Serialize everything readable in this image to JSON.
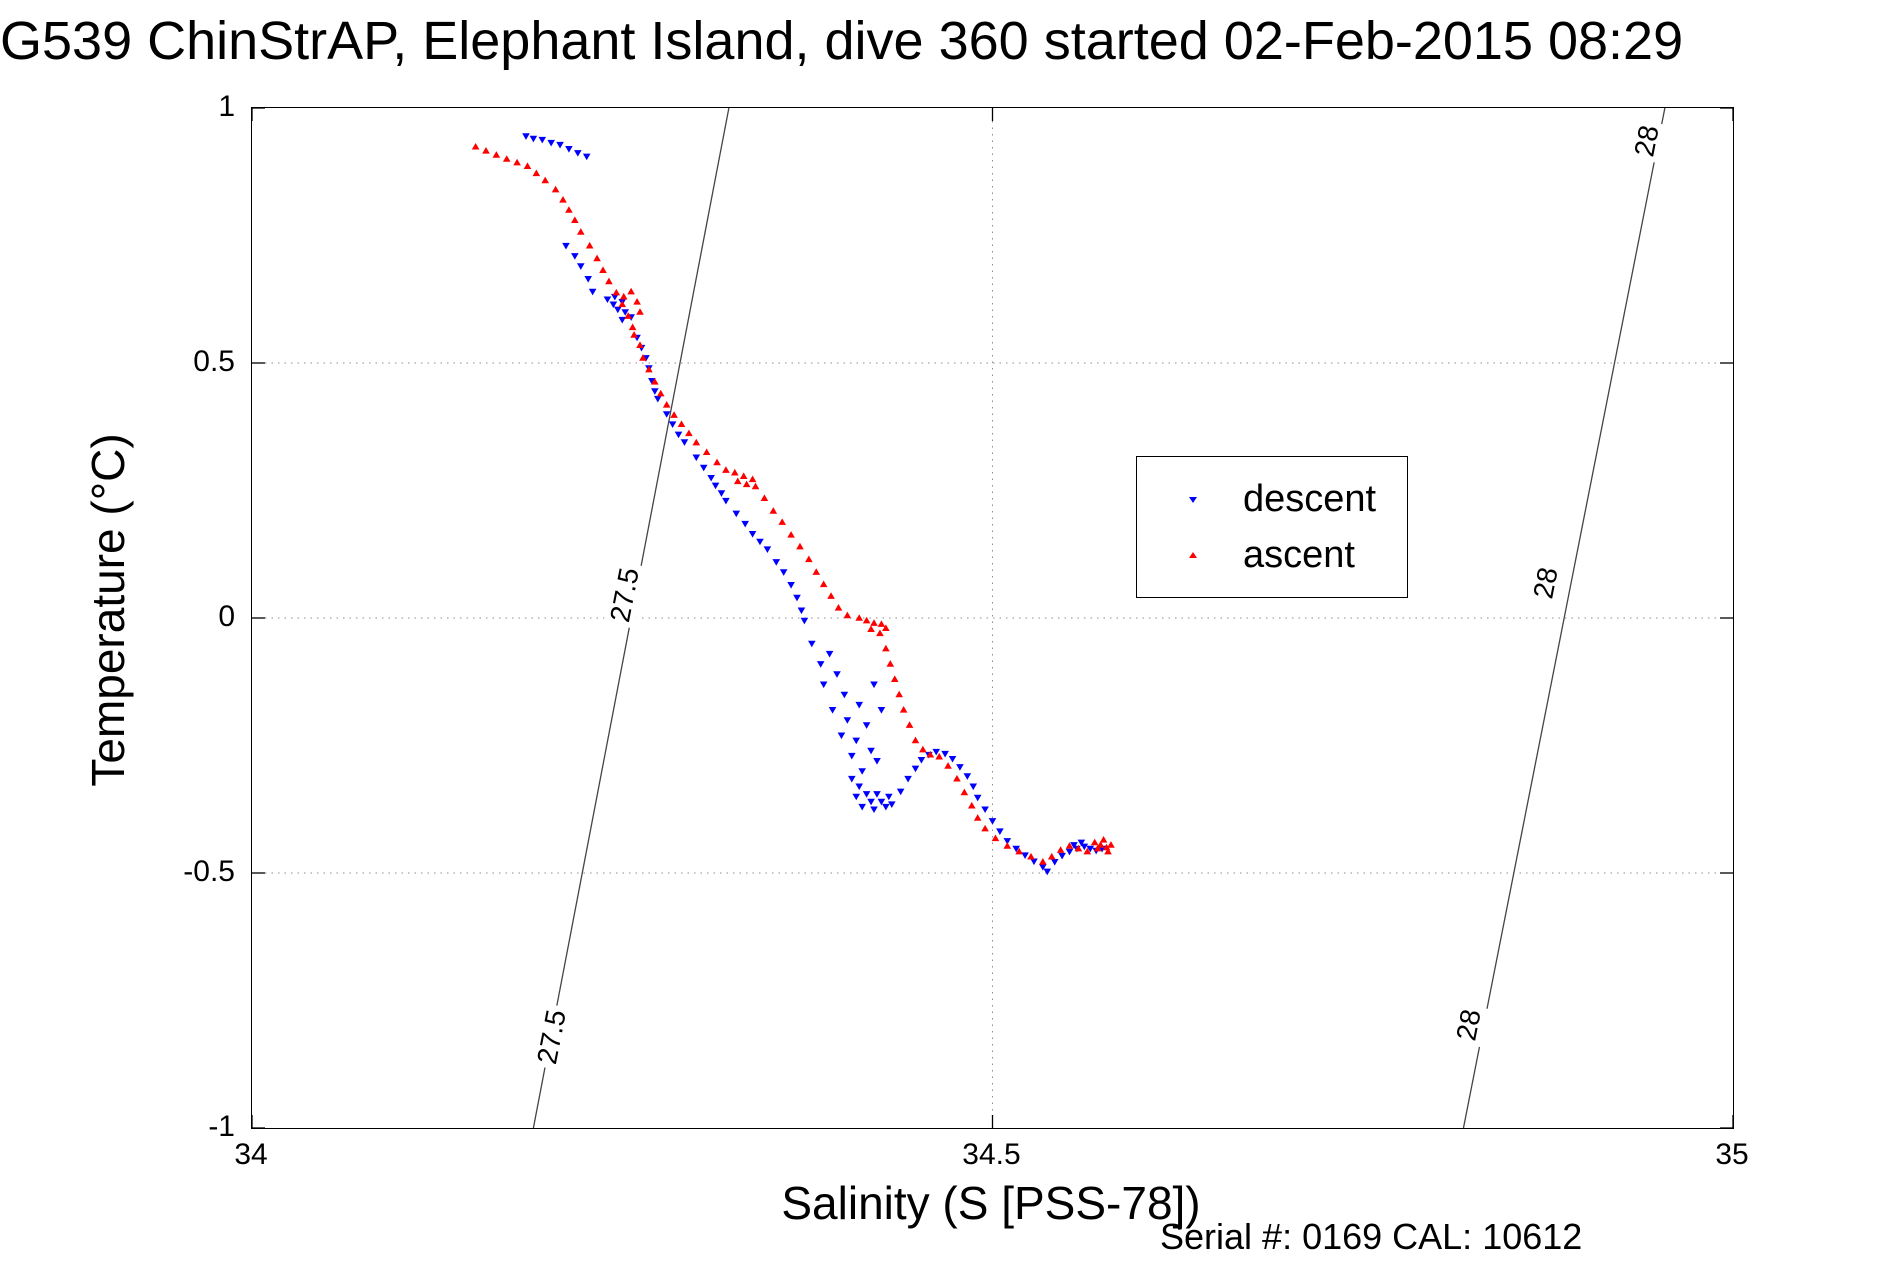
{
  "chart_data": {
    "type": "scatter",
    "title": "G539 ChinStrAP, Elephant Island, dive 360 started 02-Feb-2015 08:29",
    "xlabel": "Salinity (S [PSS-78])",
    "ylabel": "Temperature (°C)",
    "footer": "Serial #: 0169 CAL: 10612",
    "xlim": [
      34,
      35
    ],
    "ylim": [
      -1,
      1
    ],
    "xticks": [
      34,
      34.5,
      35
    ],
    "xtick_labels": [
      "34",
      "34.5",
      "35"
    ],
    "yticks": [
      -1,
      -0.5,
      0,
      0.5,
      1
    ],
    "ytick_labels": [
      "-1",
      "-0.5",
      "0",
      "0.5",
      "1"
    ],
    "grid": true,
    "legend_position": "upper-right-inside",
    "colors": {
      "descent": "#0000ff",
      "ascent": "#ff0000",
      "contour": "#444444",
      "grid": "#8c8c8c"
    },
    "contours": [
      {
        "label": "27.5",
        "line": [
          [
            34.19,
            -1
          ],
          [
            34.322,
            1
          ]
        ],
        "label_points": [
          [
            34.252,
            0.045
          ],
          [
            34.2025,
            -0.822
          ]
        ]
      },
      {
        "label": "28",
        "line": [
          [
            34.818,
            -1
          ],
          [
            34.954,
            1
          ]
        ],
        "label_points": [
          [
            34.942,
            0.936
          ],
          [
            34.8735,
            0.069
          ],
          [
            34.822,
            -0.798
          ]
        ]
      }
    ],
    "series": [
      {
        "name": "descent",
        "color": "#0000ff",
        "marker": "triangle-down",
        "points": [
          [
            34.185,
            0.945
          ],
          [
            34.19,
            0.94
          ],
          [
            34.196,
            0.938
          ],
          [
            34.202,
            0.932
          ],
          [
            34.208,
            0.928
          ],
          [
            34.214,
            0.92
          ],
          [
            34.22,
            0.912
          ],
          [
            34.226,
            0.905
          ],
          [
            34.212,
            0.73
          ],
          [
            34.218,
            0.71
          ],
          [
            34.222,
            0.69
          ],
          [
            34.227,
            0.665
          ],
          [
            34.23,
            0.64
          ],
          [
            34.24,
            0.625
          ],
          [
            34.245,
            0.63
          ],
          [
            34.25,
            0.62
          ],
          [
            34.247,
            0.605
          ],
          [
            34.252,
            0.6
          ],
          [
            34.256,
            0.59
          ],
          [
            34.25,
            0.585
          ],
          [
            34.244,
            0.615
          ],
          [
            34.26,
            0.55
          ],
          [
            34.263,
            0.53
          ],
          [
            34.266,
            0.51
          ],
          [
            34.268,
            0.49
          ],
          [
            34.27,
            0.465
          ],
          [
            34.272,
            0.445
          ],
          [
            34.274,
            0.43
          ],
          [
            34.28,
            0.4
          ],
          [
            34.284,
            0.38
          ],
          [
            34.288,
            0.36
          ],
          [
            34.292,
            0.345
          ],
          [
            34.3,
            0.315
          ],
          [
            34.305,
            0.295
          ],
          [
            34.31,
            0.275
          ],
          [
            34.313,
            0.26
          ],
          [
            34.317,
            0.245
          ],
          [
            34.32,
            0.23
          ],
          [
            34.327,
            0.205
          ],
          [
            34.333,
            0.185
          ],
          [
            34.338,
            0.165
          ],
          [
            34.343,
            0.15
          ],
          [
            34.348,
            0.135
          ],
          [
            34.354,
            0.11
          ],
          [
            34.359,
            0.09
          ],
          [
            34.364,
            0.065
          ],
          [
            34.368,
            0.04
          ],
          [
            34.371,
            0.015
          ],
          [
            34.373,
            -0.005
          ],
          [
            34.378,
            -0.05
          ],
          [
            34.384,
            -0.09
          ],
          [
            34.39,
            -0.07
          ],
          [
            34.386,
            -0.13
          ],
          [
            34.395,
            -0.11
          ],
          [
            34.4,
            -0.15
          ],
          [
            34.392,
            -0.18
          ],
          [
            34.402,
            -0.2
          ],
          [
            34.41,
            -0.17
          ],
          [
            34.398,
            -0.23
          ],
          [
            34.408,
            -0.24
          ],
          [
            34.415,
            -0.21
          ],
          [
            34.405,
            -0.27
          ],
          [
            34.418,
            -0.26
          ],
          [
            34.412,
            -0.3
          ],
          [
            34.42,
            -0.13
          ],
          [
            34.425,
            -0.18
          ],
          [
            34.422,
            -0.28
          ],
          [
            34.405,
            -0.315
          ],
          [
            34.41,
            -0.33
          ],
          [
            34.415,
            -0.345
          ],
          [
            34.408,
            -0.35
          ],
          [
            34.418,
            -0.36
          ],
          [
            34.412,
            -0.37
          ],
          [
            34.42,
            -0.375
          ],
          [
            34.425,
            -0.36
          ],
          [
            34.428,
            -0.37
          ],
          [
            34.432,
            -0.365
          ],
          [
            34.422,
            -0.345
          ],
          [
            34.43,
            -0.35
          ],
          [
            34.438,
            -0.34
          ],
          [
            34.443,
            -0.315
          ],
          [
            34.448,
            -0.295
          ],
          [
            34.452,
            -0.278
          ],
          [
            34.457,
            -0.268
          ],
          [
            34.462,
            -0.262
          ],
          [
            34.468,
            -0.266
          ],
          [
            34.473,
            -0.276
          ],
          [
            34.478,
            -0.292
          ],
          [
            34.483,
            -0.31
          ],
          [
            34.487,
            -0.33
          ],
          [
            34.49,
            -0.352
          ],
          [
            34.495,
            -0.375
          ],
          [
            34.5,
            -0.398
          ],
          [
            34.505,
            -0.418
          ],
          [
            34.51,
            -0.437
          ],
          [
            34.516,
            -0.452
          ],
          [
            34.522,
            -0.465
          ],
          [
            34.528,
            -0.477
          ],
          [
            34.534,
            -0.488
          ],
          [
            34.537,
            -0.497
          ],
          [
            34.542,
            -0.478
          ],
          [
            34.547,
            -0.466
          ],
          [
            34.552,
            -0.458
          ],
          [
            34.557,
            -0.452
          ],
          [
            34.562,
            -0.448
          ],
          [
            34.566,
            -0.452
          ],
          [
            34.57,
            -0.456
          ],
          [
            34.574,
            -0.452
          ],
          [
            34.56,
            -0.44
          ],
          [
            34.555,
            -0.445
          ]
        ]
      },
      {
        "name": "ascent",
        "color": "#ff0000",
        "marker": "triangle-up",
        "points": [
          [
            34.151,
            0.924
          ],
          [
            34.158,
            0.916
          ],
          [
            34.165,
            0.908
          ],
          [
            34.172,
            0.9
          ],
          [
            34.179,
            0.893
          ],
          [
            34.186,
            0.886
          ],
          [
            34.192,
            0.872
          ],
          [
            34.198,
            0.858
          ],
          [
            34.205,
            0.84
          ],
          [
            34.21,
            0.82
          ],
          [
            34.214,
            0.8
          ],
          [
            34.218,
            0.78
          ],
          [
            34.222,
            0.757
          ],
          [
            34.228,
            0.73
          ],
          [
            34.233,
            0.705
          ],
          [
            34.237,
            0.682
          ],
          [
            34.241,
            0.66
          ],
          [
            34.246,
            0.638
          ],
          [
            34.25,
            0.615
          ],
          [
            34.254,
            0.592
          ],
          [
            34.257,
            0.57
          ],
          [
            34.251,
            0.63
          ],
          [
            34.256,
            0.64
          ],
          [
            34.26,
            0.62
          ],
          [
            34.262,
            0.6
          ],
          [
            34.258,
            0.555
          ],
          [
            34.262,
            0.535
          ],
          [
            34.264,
            0.51
          ],
          [
            34.268,
            0.487
          ],
          [
            34.272,
            0.463
          ],
          [
            34.276,
            0.44
          ],
          [
            34.28,
            0.418
          ],
          [
            34.285,
            0.398
          ],
          [
            34.29,
            0.38
          ],
          [
            34.295,
            0.362
          ],
          [
            34.3,
            0.344
          ],
          [
            34.307,
            0.325
          ],
          [
            34.314,
            0.305
          ],
          [
            34.32,
            0.29
          ],
          [
            34.326,
            0.285
          ],
          [
            34.332,
            0.278
          ],
          [
            34.338,
            0.272
          ],
          [
            34.334,
            0.262
          ],
          [
            34.328,
            0.268
          ],
          [
            34.34,
            0.258
          ],
          [
            34.346,
            0.235
          ],
          [
            34.352,
            0.21
          ],
          [
            34.358,
            0.188
          ],
          [
            34.364,
            0.163
          ],
          [
            34.37,
            0.14
          ],
          [
            34.376,
            0.115
          ],
          [
            34.381,
            0.09
          ],
          [
            34.386,
            0.066
          ],
          [
            34.391,
            0.043
          ],
          [
            34.396,
            0.02
          ],
          [
            34.402,
            0.005
          ],
          [
            34.41,
            0.0
          ],
          [
            34.415,
            -0.005
          ],
          [
            34.42,
            -0.01
          ],
          [
            34.425,
            -0.012
          ],
          [
            34.418,
            -0.022
          ],
          [
            34.424,
            -0.03
          ],
          [
            34.428,
            -0.02
          ],
          [
            34.428,
            -0.06
          ],
          [
            34.431,
            -0.09
          ],
          [
            34.434,
            -0.12
          ],
          [
            34.437,
            -0.15
          ],
          [
            34.44,
            -0.18
          ],
          [
            34.444,
            -0.21
          ],
          [
            34.448,
            -0.24
          ],
          [
            34.453,
            -0.258
          ],
          [
            34.458,
            -0.268
          ],
          [
            34.464,
            -0.272
          ],
          [
            34.47,
            -0.29
          ],
          [
            34.476,
            -0.315
          ],
          [
            34.481,
            -0.342
          ],
          [
            34.486,
            -0.368
          ],
          [
            34.49,
            -0.392
          ],
          [
            34.495,
            -0.413
          ],
          [
            34.502,
            -0.432
          ],
          [
            34.51,
            -0.447
          ],
          [
            34.518,
            -0.458
          ],
          [
            34.526,
            -0.468
          ],
          [
            34.534,
            -0.478
          ],
          [
            34.54,
            -0.468
          ],
          [
            34.546,
            -0.455
          ],
          [
            34.552,
            -0.447
          ],
          [
            34.558,
            -0.452
          ],
          [
            34.564,
            -0.458
          ],
          [
            34.569,
            -0.44
          ],
          [
            34.573,
            -0.445
          ],
          [
            34.577,
            -0.45
          ],
          [
            34.58,
            -0.445
          ],
          [
            34.575,
            -0.435
          ],
          [
            34.571,
            -0.452
          ],
          [
            34.578,
            -0.458
          ]
        ]
      }
    ]
  }
}
